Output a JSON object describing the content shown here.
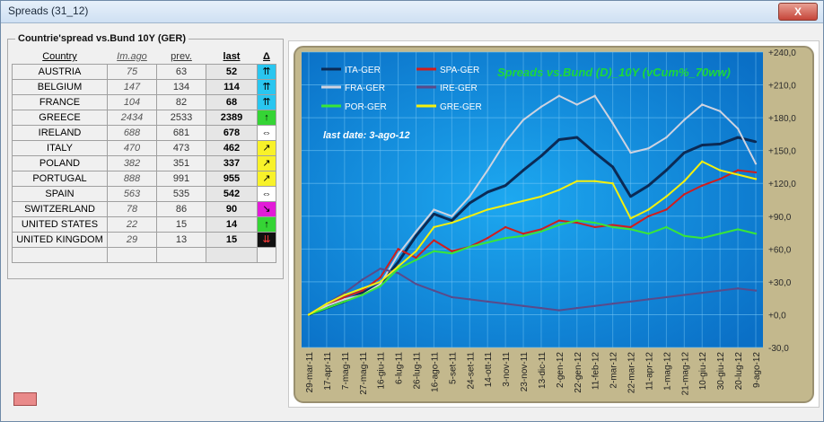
{
  "window": {
    "title": "Spreads (31_12)",
    "close_label": "X"
  },
  "panel": {
    "label": "Countrie'spread vs.Bund 10Y (GER)"
  },
  "table": {
    "headers": {
      "country": "Country",
      "imago": "Im.ago",
      "prev": "prev.",
      "last": "last",
      "delta": "Δ"
    },
    "rows": [
      {
        "country": "AUSTRIA",
        "imago": "75",
        "prev": "63",
        "last": "52",
        "arrow": "⇈",
        "color": "#29c6f0"
      },
      {
        "country": "BELGIUM",
        "imago": "147",
        "prev": "134",
        "last": "114",
        "arrow": "⇈",
        "color": "#29c6f0"
      },
      {
        "country": "FRANCE",
        "imago": "104",
        "prev": "82",
        "last": "68",
        "arrow": "⇈",
        "color": "#29c6f0"
      },
      {
        "country": "GREECE",
        "imago": "2434",
        "prev": "2533",
        "last": "2389",
        "arrow": "↑",
        "color": "#35d435"
      },
      {
        "country": "IRELAND",
        "imago": "688",
        "prev": "681",
        "last": "678",
        "arrow": "⇔",
        "color": "#ffffff"
      },
      {
        "country": "ITALY",
        "imago": "470",
        "prev": "473",
        "last": "462",
        "arrow": "↗",
        "color": "#f8f22a"
      },
      {
        "country": "POLAND",
        "imago": "382",
        "prev": "351",
        "last": "337",
        "arrow": "↗",
        "color": "#f8f22a"
      },
      {
        "country": "PORTUGAL",
        "imago": "888",
        "prev": "991",
        "last": "955",
        "arrow": "↗",
        "color": "#f8f22a"
      },
      {
        "country": "SPAIN",
        "imago": "563",
        "prev": "535",
        "last": "542",
        "arrow": "⇔",
        "color": "#ffffff"
      },
      {
        "country": "SWITZERLAND",
        "imago": "78",
        "prev": "86",
        "last": "90",
        "arrow": "↘",
        "color": "#e21bd8"
      },
      {
        "country": "UNITED STATES",
        "imago": "22",
        "prev": "15",
        "last": "14",
        "arrow": "↑",
        "color": "#35d435"
      },
      {
        "country": "UNITED KINGDOM",
        "imago": "29",
        "prev": "13",
        "last": "15",
        "arrow": "⇊",
        "color": "#111111"
      }
    ]
  },
  "chart_data": {
    "type": "line",
    "title": "Spreads vs.Bund (D)_10Y (vCum%_70ww)",
    "annotation": "last date:  3-ago-12",
    "ylim": [
      -30,
      240
    ],
    "yticks": [
      "+240,0",
      "+210,0",
      "+180,0",
      "+150,0",
      "+120,0",
      "+90,0",
      "+60,0",
      "+30,0",
      "+0,0",
      "-30,0"
    ],
    "x": [
      "29-mar-11",
      "17-apr-11",
      "7-mag-11",
      "27-mag-11",
      "16-giu-11",
      "6-lug-11",
      "26-lug-11",
      "16-ago-11",
      "5-set-11",
      "24-set-11",
      "14-ott-11",
      "3-nov-11",
      "23-nov-11",
      "13-dic-11",
      "2-gen-12",
      "22-gen-12",
      "11-feb-12",
      "2-mar-12",
      "22-mar-12",
      "11-apr-12",
      "1-mag-12",
      "21-mag-12",
      "10-giu-12",
      "30-giu-12",
      "20-lug-12",
      "9-ago-12"
    ],
    "legend_placement": "top-left",
    "grid": true,
    "colors": {
      "plot_bg": "#1f9be6",
      "frame": "#c3b88d"
    },
    "series": [
      {
        "name": "ITA-GER",
        "color": "#0b2a55",
        "values": [
          0,
          6,
          12,
          20,
          28,
          48,
          72,
          92,
          86,
          102,
          112,
          118,
          132,
          145,
          160,
          162,
          148,
          135,
          108,
          118,
          132,
          148,
          155,
          156,
          162,
          158
        ]
      },
      {
        "name": "SPA-GER",
        "color": "#d11d1d",
        "values": [
          0,
          8,
          16,
          22,
          34,
          60,
          52,
          68,
          58,
          62,
          70,
          80,
          74,
          78,
          86,
          84,
          80,
          82,
          80,
          90,
          96,
          110,
          118,
          124,
          132,
          130
        ]
      },
      {
        "name": "FRA-GER",
        "color": "#cfd3e0",
        "values": [
          0,
          8,
          14,
          18,
          28,
          55,
          76,
          96,
          90,
          108,
          132,
          158,
          178,
          190,
          200,
          192,
          200,
          175,
          148,
          152,
          162,
          178,
          192,
          186,
          170,
          138
        ]
      },
      {
        "name": "IRE-GER",
        "color": "#5a4a8a",
        "values": [
          0,
          10,
          20,
          32,
          42,
          38,
          28,
          22,
          16,
          14,
          12,
          10,
          8,
          6,
          4,
          6,
          8,
          10,
          12,
          14,
          16,
          18,
          20,
          22,
          24,
          22
        ]
      },
      {
        "name": "POR-GER",
        "color": "#39e639",
        "values": [
          0,
          6,
          12,
          18,
          26,
          42,
          50,
          58,
          56,
          62,
          66,
          70,
          72,
          76,
          82,
          86,
          84,
          80,
          78,
          74,
          80,
          72,
          70,
          74,
          78,
          74
        ]
      },
      {
        "name": "GRE-GER",
        "color": "#f4f00e",
        "values": [
          0,
          10,
          18,
          24,
          30,
          44,
          58,
          80,
          84,
          90,
          96,
          100,
          104,
          108,
          114,
          122,
          122,
          120,
          88,
          96,
          108,
          122,
          140,
          132,
          128,
          124
        ]
      }
    ]
  },
  "status_indicator": {
    "color": "#e98a8a"
  }
}
